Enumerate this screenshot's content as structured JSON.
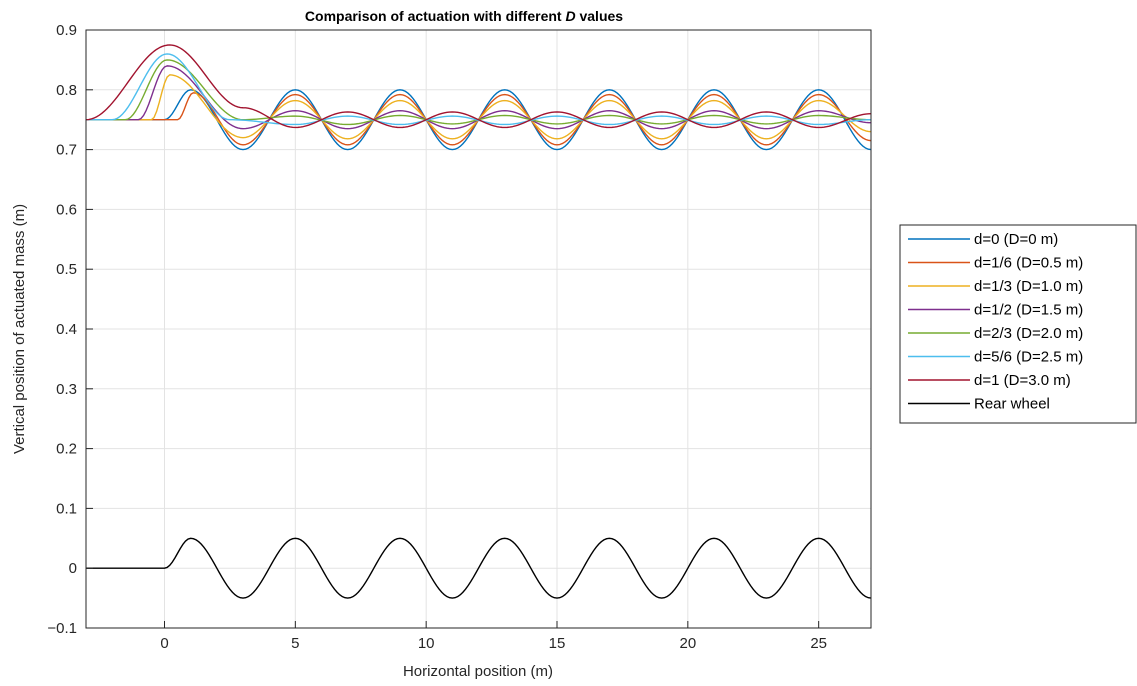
{
  "chart_data": {
    "type": "line",
    "title": "Comparison of actuation with different D values",
    "title_parts": {
      "before": "Comparison of actuation with different ",
      "italic": "D",
      "after": " values"
    },
    "xlabel": "Horizontal position (m)",
    "ylabel": "Vertical position of actuated mass (m)",
    "xlim": [
      -3,
      27
    ],
    "ylim": [
      -0.1,
      0.9
    ],
    "xticks": [
      0,
      5,
      10,
      15,
      20,
      25
    ],
    "xtick_labels": [
      "0",
      "5",
      "10",
      "15",
      "20",
      "25"
    ],
    "yticks": [
      -0.1,
      0,
      0.1,
      0.2,
      0.3,
      0.4,
      0.5,
      0.6,
      0.7,
      0.8,
      0.9
    ],
    "ytick_labels": [
      "−0.1",
      "0",
      "0.1",
      "0.2",
      "0.3",
      "0.4",
      "0.5",
      "0.6",
      "0.7",
      "0.8",
      "0.9"
    ],
    "grid": true,
    "legend_position": "outside-right",
    "series": [
      {
        "name": "d=0 (D=0 m)",
        "color": "#0072BD",
        "d": 0,
        "baseline": 0.75,
        "osc_amplitude": 0.05,
        "points": [
          [
            -3,
            0.75
          ],
          [
            0,
            0.75
          ],
          [
            1,
            0.8
          ],
          [
            3,
            0.7
          ],
          [
            5,
            0.8
          ],
          [
            7,
            0.7
          ],
          [
            9,
            0.8
          ],
          [
            11,
            0.7
          ],
          [
            13,
            0.8
          ],
          [
            15,
            0.7
          ],
          [
            17,
            0.8
          ],
          [
            19,
            0.7
          ],
          [
            21,
            0.8
          ],
          [
            23,
            0.7
          ],
          [
            25,
            0.8
          ],
          [
            27,
            0.7
          ]
        ]
      },
      {
        "name": "d=1/6 (D=0.5 m)",
        "color": "#D95319",
        "d": 0.1667,
        "baseline": 0.75,
        "osc_amplitude": 0.042,
        "points": [
          [
            -3,
            0.75
          ],
          [
            0.5,
            0.75
          ],
          [
            1.1,
            0.795
          ],
          [
            3,
            0.708
          ],
          [
            5,
            0.792
          ],
          [
            7,
            0.708
          ],
          [
            9,
            0.792
          ],
          [
            11,
            0.708
          ],
          [
            13,
            0.792
          ],
          [
            15,
            0.708
          ],
          [
            17,
            0.792
          ],
          [
            19,
            0.708
          ],
          [
            21,
            0.792
          ],
          [
            23,
            0.708
          ],
          [
            25,
            0.792
          ],
          [
            27,
            0.715
          ]
        ]
      },
      {
        "name": "d=1/3 (D=1.0 m)",
        "color": "#EDB120",
        "d": 0.3333,
        "baseline": 0.75,
        "osc_amplitude": 0.032,
        "points": [
          [
            -3,
            0.75
          ],
          [
            -0.5,
            0.75
          ],
          [
            0.2,
            0.825
          ],
          [
            3,
            0.72
          ],
          [
            5,
            0.782
          ],
          [
            7,
            0.718
          ],
          [
            9,
            0.782
          ],
          [
            11,
            0.718
          ],
          [
            13,
            0.782
          ],
          [
            15,
            0.718
          ],
          [
            17,
            0.782
          ],
          [
            19,
            0.718
          ],
          [
            21,
            0.782
          ],
          [
            23,
            0.718
          ],
          [
            25,
            0.782
          ],
          [
            27,
            0.73
          ]
        ]
      },
      {
        "name": "d=1/2 (D=1.5 m)",
        "color": "#7E2F8E",
        "d": 0.5,
        "baseline": 0.75,
        "osc_amplitude": 0.016,
        "points": [
          [
            -3,
            0.75
          ],
          [
            -1,
            0.75
          ],
          [
            0.1,
            0.84
          ],
          [
            3,
            0.735
          ],
          [
            5,
            0.765
          ],
          [
            7,
            0.735
          ],
          [
            9,
            0.765
          ],
          [
            11,
            0.735
          ],
          [
            13,
            0.765
          ],
          [
            15,
            0.735
          ],
          [
            17,
            0.765
          ],
          [
            19,
            0.735
          ],
          [
            21,
            0.765
          ],
          [
            23,
            0.735
          ],
          [
            25,
            0.765
          ],
          [
            27,
            0.745
          ]
        ]
      },
      {
        "name": "d=2/3 (D=2.0 m)",
        "color": "#77AC30",
        "d": 0.6667,
        "baseline": 0.75,
        "osc_amplitude": 0.008,
        "points": [
          [
            -3,
            0.75
          ],
          [
            -1.5,
            0.75
          ],
          [
            0.1,
            0.85
          ],
          [
            3,
            0.75
          ],
          [
            5,
            0.756
          ],
          [
            7,
            0.742
          ],
          [
            9,
            0.757
          ],
          [
            11,
            0.743
          ],
          [
            13,
            0.757
          ],
          [
            15,
            0.743
          ],
          [
            17,
            0.757
          ],
          [
            19,
            0.743
          ],
          [
            21,
            0.757
          ],
          [
            23,
            0.743
          ],
          [
            25,
            0.757
          ],
          [
            27,
            0.75
          ]
        ]
      },
      {
        "name": "d=5/6 (D=2.5 m)",
        "color": "#4DBEEE",
        "d": 0.8333,
        "baseline": 0.75,
        "osc_amplitude": 0.012,
        "points": [
          [
            -3,
            0.75
          ],
          [
            -2,
            0.75
          ],
          [
            0.1,
            0.86
          ],
          [
            2.5,
            0.75
          ],
          [
            5,
            0.742
          ],
          [
            7,
            0.756
          ],
          [
            9,
            0.742
          ],
          [
            11,
            0.756
          ],
          [
            13,
            0.742
          ],
          [
            15,
            0.756
          ],
          [
            17,
            0.742
          ],
          [
            19,
            0.756
          ],
          [
            21,
            0.742
          ],
          [
            23,
            0.756
          ],
          [
            25,
            0.742
          ],
          [
            27,
            0.75
          ]
        ]
      },
      {
        "name": "d=1 (D=3.0 m)",
        "color": "#A2142F",
        "d": 1,
        "baseline": 0.75,
        "osc_amplitude": 0.015,
        "points": [
          [
            -3,
            0.75
          ],
          [
            0.2,
            0.875
          ],
          [
            3,
            0.77
          ],
          [
            5,
            0.737
          ],
          [
            7,
            0.763
          ],
          [
            9,
            0.737
          ],
          [
            11,
            0.763
          ],
          [
            13,
            0.737
          ],
          [
            15,
            0.763
          ],
          [
            17,
            0.737
          ],
          [
            19,
            0.763
          ],
          [
            21,
            0.737
          ],
          [
            23,
            0.763
          ],
          [
            25,
            0.737
          ],
          [
            27,
            0.76
          ]
        ]
      },
      {
        "name": "Rear wheel",
        "color": "#000000",
        "d": null,
        "baseline": 0,
        "osc_amplitude": 0.05,
        "points": [
          [
            -3,
            0
          ],
          [
            0,
            0
          ],
          [
            1,
            0.05
          ],
          [
            3,
            -0.05
          ],
          [
            5,
            0.05
          ],
          [
            7,
            -0.05
          ],
          [
            9,
            0.05
          ],
          [
            11,
            -0.05
          ],
          [
            13,
            0.05
          ],
          [
            15,
            -0.05
          ],
          [
            17,
            0.05
          ],
          [
            19,
            -0.05
          ],
          [
            21,
            0.05
          ],
          [
            23,
            -0.05
          ],
          [
            25,
            0.05
          ],
          [
            27,
            -0.05
          ]
        ]
      }
    ]
  }
}
